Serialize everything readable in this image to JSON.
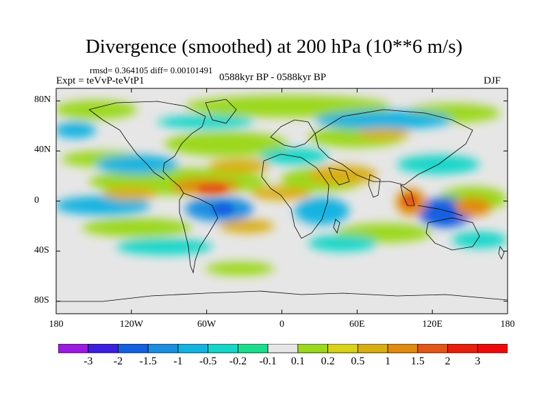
{
  "title": "Divergence (smoothed) at 200 hPa (10**6 m/s)",
  "stats": "rmsd= 0.364105  diff= 0.00101491",
  "experiment": "Expt = teVvP-teVtP1",
  "period": "0588kyr BP - 0588kyr BP",
  "season": "DJF",
  "map": {
    "lat_labels": [
      "80N",
      "40N",
      "0",
      "40S",
      "80S"
    ],
    "lat_values": [
      80,
      40,
      0,
      -40,
      -80
    ],
    "lon_labels": [
      "180",
      "120W",
      "60W",
      "0",
      "60E",
      "120E",
      "180"
    ],
    "lon_values": [
      -180,
      -120,
      -60,
      0,
      60,
      120,
      180
    ],
    "lon_range": [
      -180,
      180
    ],
    "lat_range": [
      -90,
      90
    ],
    "land_color": "#e6e6e6"
  },
  "colorbar": {
    "labels": [
      "-3",
      "-2",
      "-1.5",
      "-1",
      "-0.5",
      "-0.2",
      "-0.1",
      "0.1",
      "0.2",
      "0.5",
      "1",
      "1.5",
      "2",
      "3"
    ],
    "colors": [
      "#9b1be0",
      "#3b1fe0",
      "#1560e0",
      "#1a8fe0",
      "#13b3e0",
      "#14d6c9",
      "#1ade8c",
      "#e6e6e6",
      "#9bd81e",
      "#d8d21a",
      "#d9ae14",
      "#e08a0f",
      "#e2561a",
      "#e81f0c",
      "#ee0a0a"
    ]
  }
}
